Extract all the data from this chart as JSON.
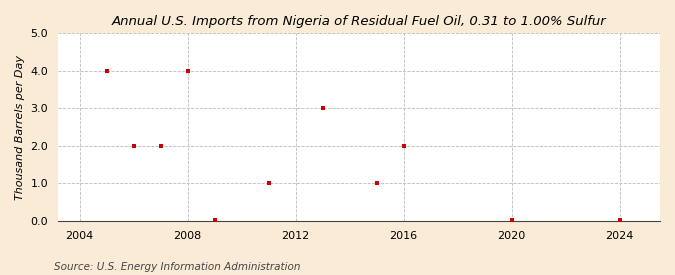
{
  "title": "Annual U.S. Imports from Nigeria of Residual Fuel Oil, 0.31 to 1.00% Sulfur",
  "ylabel": "Thousand Barrels per Day",
  "source": "Source: U.S. Energy Information Administration",
  "background_color": "#faebd7",
  "plot_background_color": "#ffffff",
  "data_points": [
    [
      2005,
      4.0
    ],
    [
      2006,
      2.0
    ],
    [
      2007,
      2.0
    ],
    [
      2008,
      4.0
    ],
    [
      2009,
      0.03
    ],
    [
      2011,
      1.0
    ],
    [
      2013,
      3.0
    ],
    [
      2015,
      1.0
    ],
    [
      2016,
      2.0
    ],
    [
      2020,
      0.03
    ],
    [
      2024,
      0.03
    ]
  ],
  "xlim": [
    2003.2,
    2025.5
  ],
  "ylim": [
    0.0,
    5.0
  ],
  "xticks": [
    2004,
    2008,
    2012,
    2016,
    2020,
    2024
  ],
  "yticks": [
    0.0,
    1.0,
    2.0,
    3.0,
    4.0,
    5.0
  ],
  "marker_color": "#cc0000",
  "marker_size": 12,
  "grid_color": "#bbbbbb",
  "title_fontsize": 9.5,
  "label_fontsize": 8,
  "tick_fontsize": 8,
  "source_fontsize": 7.5
}
